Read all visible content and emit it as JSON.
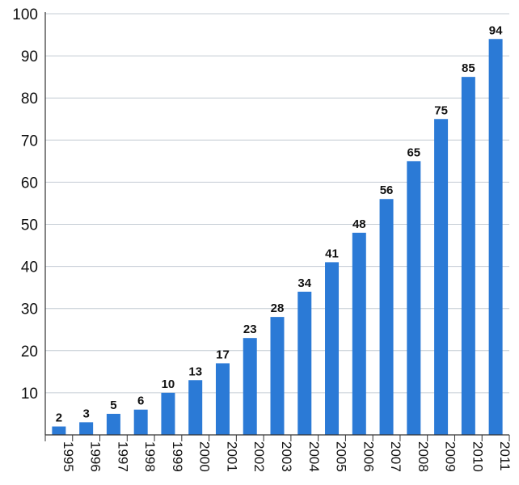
{
  "chart_data": {
    "type": "bar",
    "categories": [
      "1995",
      "1996",
      "1997",
      "1998",
      "1999",
      "2000",
      "2001",
      "2002",
      "2003",
      "2004",
      "2005",
      "2006",
      "2007",
      "2008",
      "2009",
      "2010",
      "2011"
    ],
    "values": [
      2,
      3,
      5,
      6,
      10,
      13,
      17,
      23,
      28,
      34,
      41,
      48,
      56,
      65,
      75,
      85,
      94
    ],
    "data_labels": [
      "2",
      "3",
      "5",
      "6",
      "10",
      "13",
      "17",
      "23",
      "28",
      "34",
      "41",
      "48",
      "56",
      "65",
      "75",
      "85",
      "94"
    ],
    "title": "",
    "xlabel": "",
    "ylabel": "",
    "ylim": [
      0,
      100
    ],
    "yticks": [
      "10",
      "20",
      "30",
      "40",
      "50",
      "60",
      "70",
      "80",
      "90",
      "100"
    ],
    "grid": true,
    "bar_color": "#2b7ad6",
    "grid_color": "#c4ccd4"
  }
}
